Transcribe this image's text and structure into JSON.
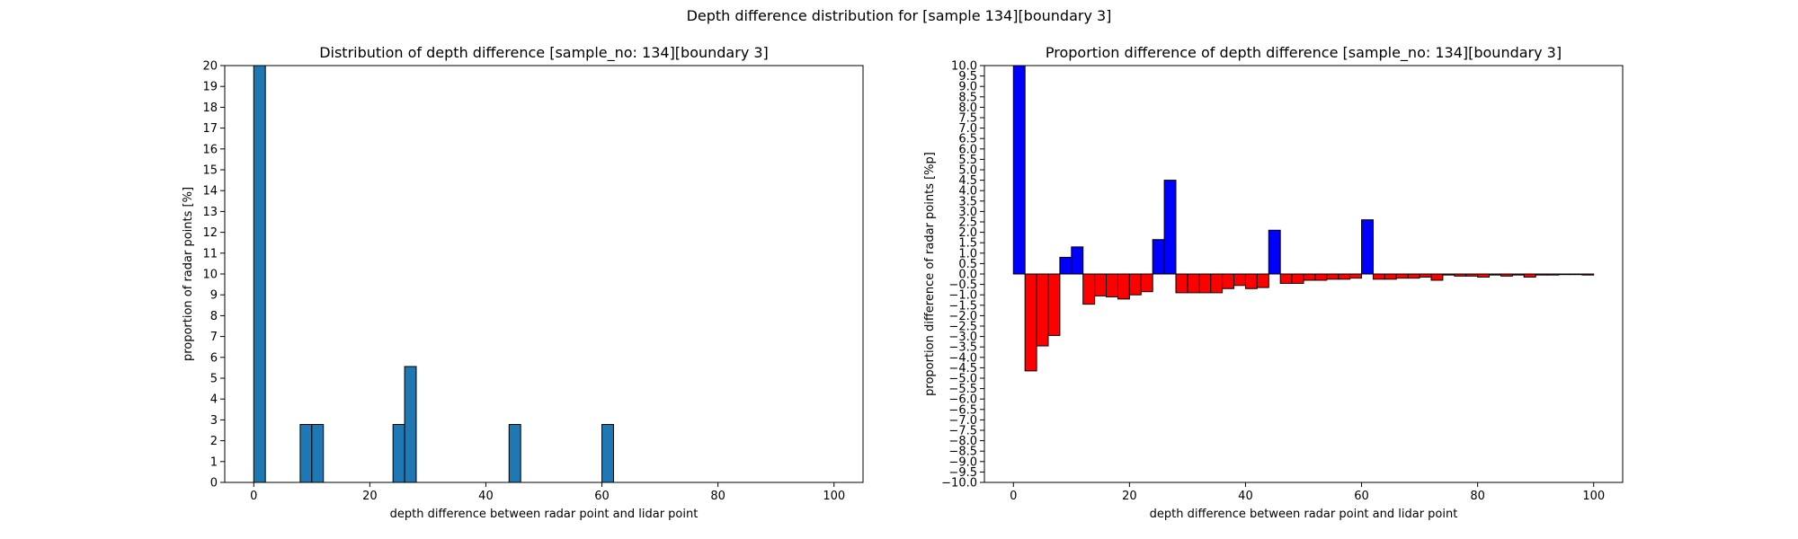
{
  "figure": {
    "suptitle": "Depth difference distribution for [sample 134][boundary 3]"
  },
  "chart_data": [
    {
      "type": "bar",
      "title": "Distribution of depth difference [sample_no: 134][boundary 3]",
      "xlabel": "depth difference between radar point and lidar point",
      "ylabel": "proportion of radar points [%]",
      "xlim": [
        -5,
        105
      ],
      "ylim": [
        0,
        20
      ],
      "xticks": [
        0,
        20,
        40,
        60,
        80,
        100
      ],
      "yticks": [
        0,
        1,
        2,
        3,
        4,
        5,
        6,
        7,
        8,
        9,
        10,
        11,
        12,
        13,
        14,
        15,
        16,
        17,
        18,
        19,
        20
      ],
      "bin_width": 2,
      "color": "#1f77b4",
      "edgecolor": "#000000",
      "bars": [
        {
          "x": 0,
          "y": 20
        },
        {
          "x": 8,
          "y": 2.78
        },
        {
          "x": 10,
          "y": 2.78
        },
        {
          "x": 24,
          "y": 2.78
        },
        {
          "x": 26,
          "y": 5.56
        },
        {
          "x": 44,
          "y": 2.78
        },
        {
          "x": 60,
          "y": 2.78
        }
      ]
    },
    {
      "type": "bar",
      "title": "Proportion difference of depth difference [sample_no: 134][boundary 3]",
      "xlabel": "depth difference between radar point and lidar point",
      "ylabel": "proportion difference of radar points [%p]",
      "xlim": [
        -5,
        105
      ],
      "ylim": [
        -10,
        10
      ],
      "xticks": [
        0,
        20,
        40,
        60,
        80,
        100
      ],
      "yticks": [
        -10.0,
        -9.5,
        -9.0,
        -8.5,
        -8.0,
        -7.5,
        -7.0,
        -6.5,
        -6.0,
        -5.5,
        -5.0,
        -4.5,
        -4.0,
        -3.5,
        -3.0,
        -2.5,
        -2.0,
        -1.5,
        -1.0,
        -0.5,
        0.0,
        0.5,
        1.0,
        1.5,
        2.0,
        2.5,
        3.0,
        3.5,
        4.0,
        4.5,
        5.0,
        5.5,
        6.0,
        6.5,
        7.0,
        7.5,
        8.0,
        8.5,
        9.0,
        9.5,
        10.0
      ],
      "bin_width": 2,
      "positive_color": "#0000ff",
      "negative_color": "#ff0000",
      "edgecolor": "#000000",
      "bars": [
        {
          "x": 0,
          "y": 10.0
        },
        {
          "x": 2,
          "y": -4.65
        },
        {
          "x": 4,
          "y": -3.45
        },
        {
          "x": 6,
          "y": -2.95
        },
        {
          "x": 8,
          "y": 0.8
        },
        {
          "x": 10,
          "y": 1.3
        },
        {
          "x": 12,
          "y": -1.45
        },
        {
          "x": 14,
          "y": -1.05
        },
        {
          "x": 16,
          "y": -1.1
        },
        {
          "x": 18,
          "y": -1.2
        },
        {
          "x": 20,
          "y": -1.0
        },
        {
          "x": 22,
          "y": -0.85
        },
        {
          "x": 24,
          "y": 1.65
        },
        {
          "x": 26,
          "y": 4.5
        },
        {
          "x": 28,
          "y": -0.9
        },
        {
          "x": 30,
          "y": -0.9
        },
        {
          "x": 32,
          "y": -0.9
        },
        {
          "x": 34,
          "y": -0.9
        },
        {
          "x": 36,
          "y": -0.7
        },
        {
          "x": 38,
          "y": -0.55
        },
        {
          "x": 40,
          "y": -0.7
        },
        {
          "x": 42,
          "y": -0.65
        },
        {
          "x": 44,
          "y": 2.1
        },
        {
          "x": 46,
          "y": -0.45
        },
        {
          "x": 48,
          "y": -0.45
        },
        {
          "x": 50,
          "y": -0.3
        },
        {
          "x": 52,
          "y": -0.3
        },
        {
          "x": 54,
          "y": -0.25
        },
        {
          "x": 56,
          "y": -0.25
        },
        {
          "x": 58,
          "y": -0.2
        },
        {
          "x": 60,
          "y": 2.6
        },
        {
          "x": 62,
          "y": -0.25
        },
        {
          "x": 64,
          "y": -0.25
        },
        {
          "x": 66,
          "y": -0.2
        },
        {
          "x": 68,
          "y": -0.2
        },
        {
          "x": 70,
          "y": -0.15
        },
        {
          "x": 72,
          "y": -0.3
        },
        {
          "x": 74,
          "y": -0.05
        },
        {
          "x": 76,
          "y": -0.1
        },
        {
          "x": 78,
          "y": -0.1
        },
        {
          "x": 80,
          "y": -0.15
        },
        {
          "x": 82,
          "y": -0.05
        },
        {
          "x": 84,
          "y": -0.1
        },
        {
          "x": 86,
          "y": -0.05
        },
        {
          "x": 88,
          "y": -0.15
        },
        {
          "x": 90,
          "y": -0.05
        },
        {
          "x": 92,
          "y": -0.05
        },
        {
          "x": 94,
          "y": -0.03
        },
        {
          "x": 96,
          "y": -0.03
        },
        {
          "x": 98,
          "y": -0.05
        }
      ]
    }
  ]
}
